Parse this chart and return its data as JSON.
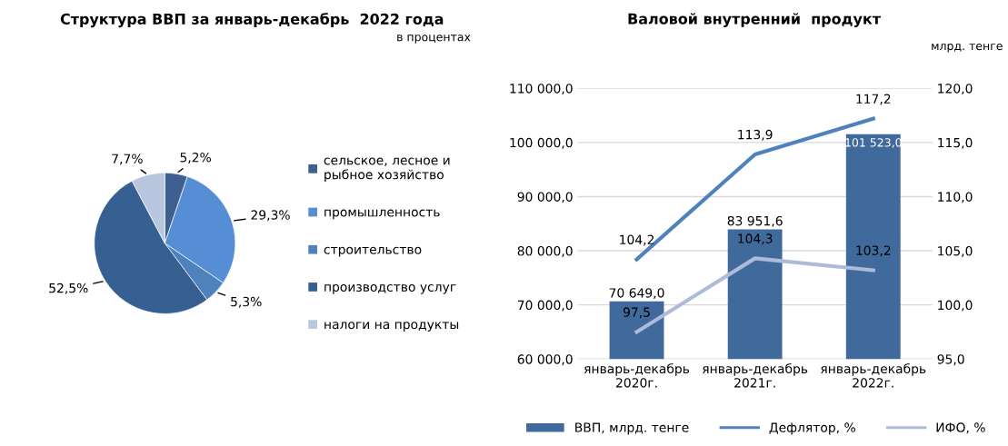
{
  "chart_data": [
    {
      "type": "pie",
      "title": "Структура ВВП за январь-декабрь  2022 года",
      "annotations": [
        "в процентах"
      ],
      "categories": [
        "сельское, лесное и рыбное хозяйство",
        "промышленность",
        "строительство",
        "производство услуг",
        "налоги на продукты"
      ],
      "values": [
        5.2,
        29.3,
        5.3,
        52.5,
        7.7
      ],
      "value_labels": [
        "5,2%",
        "29,3%",
        "5,3%",
        "52,5%",
        "7,7%"
      ],
      "colors": [
        "#3d6090",
        "#558ed5",
        "#4f81bd",
        "#376092",
        "#b9c6e0"
      ],
      "legend": "right"
    },
    {
      "type": "bar",
      "title": "Валовой внутренний  продукт",
      "annotations": [
        "млрд. тенге"
      ],
      "categories": [
        "январь-декабрь 2020г.",
        "январь-декабрь 2021г.",
        "январь-декабрь 2022г."
      ],
      "series": [
        {
          "name": "ВВП, млрд. тенге",
          "type": "bar",
          "color": "#416a9c",
          "values": [
            70649.0,
            83951.6,
            101523.0
          ],
          "value_labels": [
            "70 649,0",
            "83 951,6",
            "101 523,0"
          ]
        },
        {
          "name": "Дефлятор, %",
          "type": "line",
          "axis": "y2",
          "color": "#4f81bd",
          "values": [
            104.2,
            113.9,
            117.2
          ],
          "value_labels": [
            "104,2",
            "113,9",
            "117,2"
          ]
        },
        {
          "name": "ИФО, %",
          "type": "line",
          "axis": "y2",
          "color": "#adbbd9",
          "values": [
            97.5,
            104.3,
            103.2
          ],
          "value_labels": [
            "97,5",
            "104,3",
            "103,2"
          ]
        }
      ],
      "ylim": [
        60000,
        110000
      ],
      "yticks": [
        {
          "value": 60000,
          "label": "60 000,0"
        },
        {
          "value": 70000,
          "label": "70 000,0"
        },
        {
          "value": 80000,
          "label": "80 000,0"
        },
        {
          "value": 90000,
          "label": "90 000,0"
        },
        {
          "value": 100000,
          "label": "100 000,0"
        },
        {
          "value": 110000,
          "label": "110 000,0"
        }
      ],
      "y2lim": [
        95,
        120
      ],
      "y2ticks": [
        {
          "value": 95,
          "label": "95,0"
        },
        {
          "value": 100,
          "label": "100,0"
        },
        {
          "value": 105,
          "label": "105,0"
        },
        {
          "value": 110,
          "label": "110,0"
        },
        {
          "value": 115,
          "label": "115,0"
        },
        {
          "value": 120,
          "label": "120,0"
        }
      ],
      "grid": "y",
      "legend": "bottom"
    }
  ]
}
